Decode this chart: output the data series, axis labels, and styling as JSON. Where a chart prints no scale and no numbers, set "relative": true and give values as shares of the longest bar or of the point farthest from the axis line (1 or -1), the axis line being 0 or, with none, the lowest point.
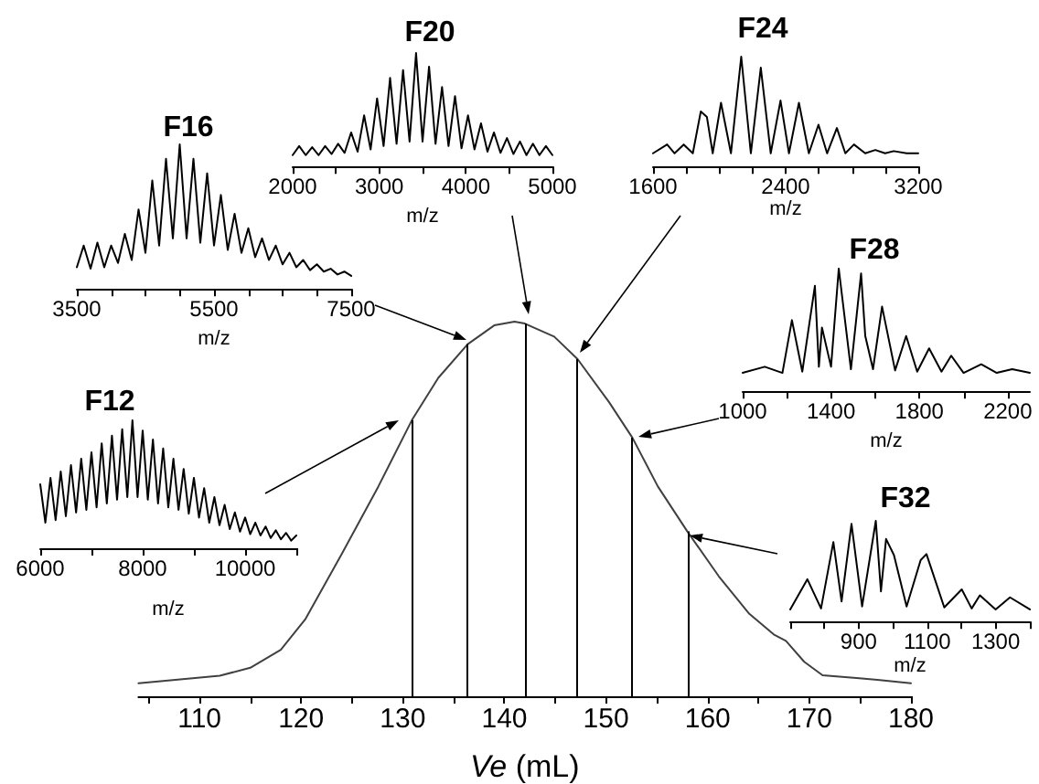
{
  "chart_data": [
    {
      "type": "line",
      "xlabel": "Ve (mL)",
      "relative": true,
      "color": "#404040",
      "xlim": [
        104,
        180
      ],
      "xticks": [
        {
          "value": 105,
          "label": null
        },
        110,
        {
          "value": 115,
          "label": null
        },
        120,
        {
          "value": 125,
          "label": null
        },
        130,
        {
          "value": 135,
          "label": null
        },
        140,
        {
          "value": 145,
          "label": null
        },
        150,
        {
          "value": 155,
          "label": null
        },
        160,
        {
          "value": 165,
          "label": null
        },
        170,
        {
          "value": 175,
          "label": null
        },
        180
      ],
      "x": [
        104,
        112,
        115,
        118,
        120.4,
        124,
        127.6,
        130.9,
        133.5,
        136.4,
        139,
        141,
        142,
        144.9,
        147.2,
        150.3,
        152.6,
        155.1,
        158,
        161.1,
        164.1,
        166.5,
        167.7,
        169.5,
        171.3,
        174.9,
        176.7,
        180
      ],
      "values": [
        0.035,
        0.055,
        0.076,
        0.124,
        0.205,
        0.38,
        0.56,
        0.737,
        0.85,
        0.94,
        0.99,
        1.0,
        0.995,
        0.96,
        0.9,
        0.785,
        0.69,
        0.56,
        0.44,
        0.32,
        0.22,
        0.165,
        0.148,
        0.092,
        0.056,
        0.048,
        0.044,
        0.035
      ],
      "ref_lines": [
        {
          "axis": "x",
          "value": 130.9,
          "color": "#000000"
        },
        {
          "axis": "x",
          "value": 136.4,
          "color": "#000000"
        },
        {
          "axis": "x",
          "value": 142,
          "color": "#000000"
        },
        {
          "axis": "x",
          "value": 147.2,
          "color": "#000000"
        },
        {
          "axis": "x",
          "value": 152.6,
          "color": "#000000"
        },
        {
          "axis": "x",
          "value": 158,
          "color": "#000000"
        }
      ]
    },
    {
      "type": "line",
      "title": "F12",
      "xlabel": "m/z",
      "relative": true,
      "color": "#000000",
      "xlim": [
        6000,
        11000
      ],
      "xticks": [
        6000,
        {
          "value": 7000,
          "label": null
        },
        8000,
        {
          "value": 9000,
          "label": null
        },
        10000,
        {
          "value": 11000,
          "label": null
        }
      ],
      "x": [
        6000,
        6100,
        6200,
        6300,
        6400,
        6500,
        6600,
        6700,
        6800,
        6900,
        7000,
        7100,
        7200,
        7300,
        7400,
        7500,
        7600,
        7700,
        7800,
        7900,
        8000,
        8100,
        8200,
        8300,
        8400,
        8500,
        8600,
        8700,
        8800,
        8900,
        9000,
        9100,
        9200,
        9300,
        9400,
        9500,
        9600,
        9700,
        9800,
        9900,
        10000,
        10100,
        10200,
        10300,
        10400,
        10500,
        10600,
        10700,
        10800,
        10900,
        11000
      ],
      "values": [
        0.5,
        0.2,
        0.55,
        0.22,
        0.6,
        0.25,
        0.65,
        0.28,
        0.7,
        0.3,
        0.75,
        0.32,
        0.82,
        0.35,
        0.88,
        0.38,
        0.93,
        0.4,
        1.0,
        0.4,
        0.92,
        0.38,
        0.85,
        0.35,
        0.78,
        0.32,
        0.7,
        0.3,
        0.62,
        0.27,
        0.55,
        0.24,
        0.47,
        0.2,
        0.4,
        0.18,
        0.34,
        0.15,
        0.28,
        0.13,
        0.24,
        0.11,
        0.2,
        0.1,
        0.17,
        0.08,
        0.14,
        0.07,
        0.12,
        0.06,
        0.1
      ]
    },
    {
      "type": "line",
      "title": "F16",
      "xlabel": "m/z",
      "relative": true,
      "color": "#000000",
      "xlim": [
        3500,
        7500
      ],
      "xticks": [
        3500,
        {
          "value": 4000,
          "label": null
        },
        {
          "value": 4500,
          "label": null
        },
        {
          "value": 5000,
          "label": null
        },
        5500,
        {
          "value": 6000,
          "label": null
        },
        {
          "value": 6500,
          "label": null
        },
        {
          "value": 7000,
          "label": null
        },
        7500
      ],
      "x": [
        3500,
        3600,
        3700,
        3800,
        3900,
        4000,
        4100,
        4200,
        4300,
        4400,
        4500,
        4600,
        4700,
        4800,
        4900,
        5000,
        5100,
        5200,
        5300,
        5400,
        5500,
        5600,
        5700,
        5800,
        5900,
        6000,
        6100,
        6200,
        6300,
        6400,
        6500,
        6600,
        6700,
        6800,
        6900,
        7000,
        7100,
        7200,
        7300,
        7400,
        7500
      ],
      "values": [
        0.15,
        0.3,
        0.14,
        0.32,
        0.15,
        0.3,
        0.18,
        0.38,
        0.2,
        0.55,
        0.25,
        0.75,
        0.3,
        0.9,
        0.35,
        1.0,
        0.35,
        0.9,
        0.32,
        0.8,
        0.3,
        0.65,
        0.27,
        0.52,
        0.25,
        0.42,
        0.22,
        0.35,
        0.2,
        0.3,
        0.17,
        0.25,
        0.15,
        0.2,
        0.13,
        0.17,
        0.12,
        0.14,
        0.1,
        0.12,
        0.09
      ]
    },
    {
      "type": "line",
      "title": "F20",
      "xlabel": "m/z",
      "relative": true,
      "color": "#000000",
      "xlim": [
        2000,
        5000
      ],
      "xticks": [
        2000,
        {
          "value": 2500,
          "label": null
        },
        3000,
        {
          "value": 3500,
          "label": null
        },
        4000,
        {
          "value": 4500,
          "label": null
        },
        5000
      ],
      "x": [
        2000,
        2075,
        2150,
        2225,
        2300,
        2375,
        2450,
        2525,
        2600,
        2675,
        2750,
        2825,
        2900,
        2975,
        3050,
        3125,
        3200,
        3275,
        3350,
        3425,
        3500,
        3575,
        3650,
        3725,
        3800,
        3875,
        3950,
        4025,
        4100,
        4175,
        4250,
        4325,
        4400,
        4475,
        4550,
        4625,
        4700,
        4775,
        4850,
        4925,
        5000
      ],
      "values": [
        0.1,
        0.18,
        0.1,
        0.17,
        0.1,
        0.18,
        0.11,
        0.2,
        0.12,
        0.3,
        0.13,
        0.45,
        0.15,
        0.6,
        0.18,
        0.78,
        0.2,
        0.85,
        0.22,
        1.0,
        0.22,
        0.88,
        0.2,
        0.7,
        0.18,
        0.62,
        0.16,
        0.45,
        0.15,
        0.38,
        0.13,
        0.3,
        0.12,
        0.25,
        0.11,
        0.22,
        0.1,
        0.2,
        0.1,
        0.18,
        0.1
      ]
    },
    {
      "type": "line",
      "title": "F24",
      "xlabel": "m/z",
      "relative": true,
      "color": "#000000",
      "xlim": [
        1600,
        3200
      ],
      "xticks": [
        1600,
        {
          "value": 1800,
          "label": null
        },
        {
          "value": 2000,
          "label": null
        },
        {
          "value": 2200,
          "label": null
        },
        2400,
        {
          "value": 2600,
          "label": null
        },
        {
          "value": 2800,
          "label": null
        },
        {
          "value": 3000,
          "label": null
        },
        3200
      ],
      "x": [
        1600,
        1685,
        1730,
        1785,
        1840,
        1888,
        1925,
        1960,
        2010,
        2070,
        2132,
        2190,
        2250,
        2310,
        2369,
        2420,
        2480,
        2540,
        2598,
        2650,
        2709,
        2760,
        2812,
        2880,
        2941,
        3000,
        3052,
        3130,
        3200
      ],
      "values": [
        0.12,
        0.2,
        0.12,
        0.2,
        0.12,
        0.5,
        0.45,
        0.12,
        0.58,
        0.12,
        1.0,
        0.12,
        0.9,
        0.12,
        0.6,
        0.12,
        0.58,
        0.12,
        0.38,
        0.12,
        0.35,
        0.12,
        0.2,
        0.12,
        0.15,
        0.12,
        0.14,
        0.12,
        0.12
      ]
    },
    {
      "type": "line",
      "title": "F28",
      "xlabel": "m/z",
      "relative": true,
      "color": "#000000",
      "xlim": [
        1000,
        2300
      ],
      "xticks": [
        1000,
        {
          "value": 1200,
          "label": null
        },
        1400,
        {
          "value": 1600,
          "label": null
        },
        1800,
        {
          "value": 2000,
          "label": null
        },
        2200
      ],
      "x": [
        1000,
        1100,
        1180,
        1223,
        1270,
        1327,
        1345,
        1359,
        1400,
        1435,
        1490,
        1536,
        1555,
        1590,
        1631,
        1690,
        1740,
        1790,
        1844,
        1900,
        1944,
        2000,
        2080,
        2150,
        2220,
        2300
      ],
      "values": [
        0.15,
        0.2,
        0.15,
        0.58,
        0.16,
        0.86,
        0.2,
        0.52,
        0.2,
        1.0,
        0.18,
        0.96,
        0.45,
        0.18,
        0.69,
        0.17,
        0.45,
        0.16,
        0.35,
        0.16,
        0.29,
        0.15,
        0.22,
        0.15,
        0.18,
        0.15
      ]
    },
    {
      "type": "line",
      "title": "F32",
      "xlabel": "m/z",
      "relative": true,
      "color": "#000000",
      "xlim": [
        700,
        1400
      ],
      "xticks": [
        {
          "value": 700,
          "label": null
        },
        {
          "value": 800,
          "label": null
        },
        900,
        {
          "value": 1000,
          "label": null
        },
        1100,
        {
          "value": 1200,
          "label": null
        },
        1300,
        {
          "value": 1400,
          "label": null
        }
      ],
      "x": [
        700,
        750,
        790,
        826,
        850,
        879,
        910,
        950,
        965,
        980,
        1003,
        1040,
        1081,
        1098,
        1150,
        1201,
        1230,
        1254,
        1300,
        1342,
        1400
      ],
      "values": [
        0.12,
        0.42,
        0.13,
        0.79,
        0.2,
        0.97,
        0.15,
        1.0,
        0.3,
        0.82,
        0.66,
        0.15,
        0.61,
        0.67,
        0.14,
        0.32,
        0.13,
        0.26,
        0.12,
        0.24,
        0.12
      ]
    }
  ]
}
